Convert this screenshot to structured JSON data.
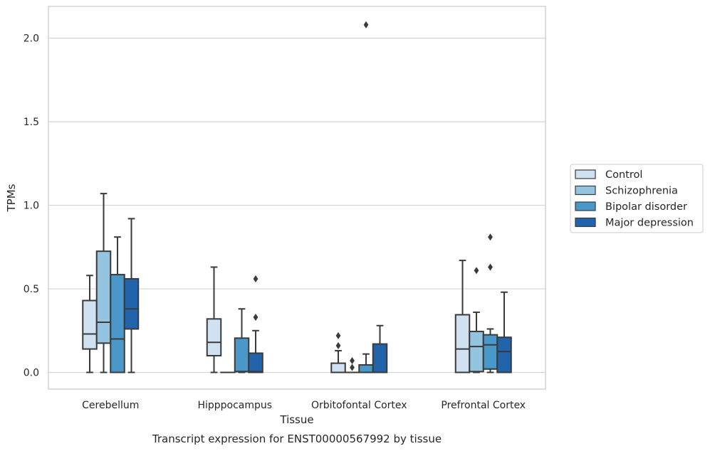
{
  "chart_data": {
    "type": "box",
    "caption": "Transcript expression for ENST00000567992 by tissue",
    "xlabel": "Tissue",
    "ylabel": "TPMs",
    "ylim": [
      -0.1,
      2.19
    ],
    "yticks": [
      0.0,
      0.5,
      1.0,
      1.5,
      2.0
    ],
    "ytick_labels": [
      "0.0",
      "0.5",
      "1.0",
      "1.5",
      "2.0"
    ],
    "grid": "horizontal",
    "legend_placement": "right",
    "categories": [
      "Cerebellum",
      "Hipppocampus",
      "Orbitofontal Cortex",
      "Prefrontal Cortex"
    ],
    "series": [
      {
        "name": "Control",
        "color": "#d0e1f2",
        "boxes": [
          {
            "whislo": 0.0,
            "q1": 0.14,
            "med": 0.23,
            "q3": 0.43,
            "whishi": 0.58,
            "fliers": []
          },
          {
            "whislo": 0.0,
            "q1": 0.1,
            "med": 0.18,
            "q3": 0.32,
            "whishi": 0.63,
            "fliers": []
          },
          {
            "whislo": 0.0,
            "q1": 0.0,
            "med": 0.0,
            "q3": 0.055,
            "whishi": 0.13,
            "fliers": [
              0.16,
              0.22
            ]
          },
          {
            "whislo": 0.0,
            "q1": 0.0,
            "med": 0.14,
            "q3": 0.345,
            "whishi": 0.67,
            "fliers": []
          }
        ]
      },
      {
        "name": "Schizophrenia",
        "color": "#94c4df",
        "boxes": [
          {
            "whislo": 0.0,
            "q1": 0.175,
            "med": 0.3,
            "q3": 0.725,
            "whishi": 1.07,
            "fliers": []
          },
          {
            "whislo": 0.0,
            "q1": 0.0,
            "med": 0.0,
            "q3": 0.0,
            "whishi": 0.0,
            "fliers": []
          },
          {
            "whislo": 0.0,
            "q1": 0.0,
            "med": 0.0,
            "q3": 0.0,
            "whishi": 0.0,
            "fliers": [
              0.03,
              0.07
            ]
          },
          {
            "whislo": 0.0,
            "q1": 0.005,
            "med": 0.155,
            "q3": 0.245,
            "whishi": 0.36,
            "fliers": [
              0.61
            ]
          }
        ]
      },
      {
        "name": "Bipolar disorder",
        "color": "#4a98c9",
        "boxes": [
          {
            "whislo": 0.0,
            "q1": 0.0,
            "med": 0.2,
            "q3": 0.585,
            "whishi": 0.81,
            "fliers": []
          },
          {
            "whislo": 0.0,
            "q1": 0.005,
            "med": 0.005,
            "q3": 0.205,
            "whishi": 0.38,
            "fliers": []
          },
          {
            "whislo": 0.0,
            "q1": 0.0,
            "med": 0.0,
            "q3": 0.045,
            "whishi": 0.11,
            "fliers": [
              2.08
            ]
          },
          {
            "whislo": 0.0,
            "q1": 0.02,
            "med": 0.165,
            "q3": 0.225,
            "whishi": 0.26,
            "fliers": [
              0.63,
              0.81
            ]
          }
        ]
      },
      {
        "name": "Major depression",
        "color": "#2164ab",
        "boxes": [
          {
            "whislo": 0.0,
            "q1": 0.26,
            "med": 0.38,
            "q3": 0.56,
            "whishi": 0.92,
            "fliers": []
          },
          {
            "whislo": 0.0,
            "q1": 0.0,
            "med": 0.005,
            "q3": 0.115,
            "whishi": 0.25,
            "fliers": [
              0.33,
              0.56
            ]
          },
          {
            "whislo": 0.0,
            "q1": 0.0,
            "med": 0.0,
            "q3": 0.17,
            "whishi": 0.28,
            "fliers": []
          },
          {
            "whislo": 0.0,
            "q1": 0.0,
            "med": 0.125,
            "q3": 0.21,
            "whishi": 0.48,
            "fliers": []
          }
        ]
      }
    ]
  }
}
